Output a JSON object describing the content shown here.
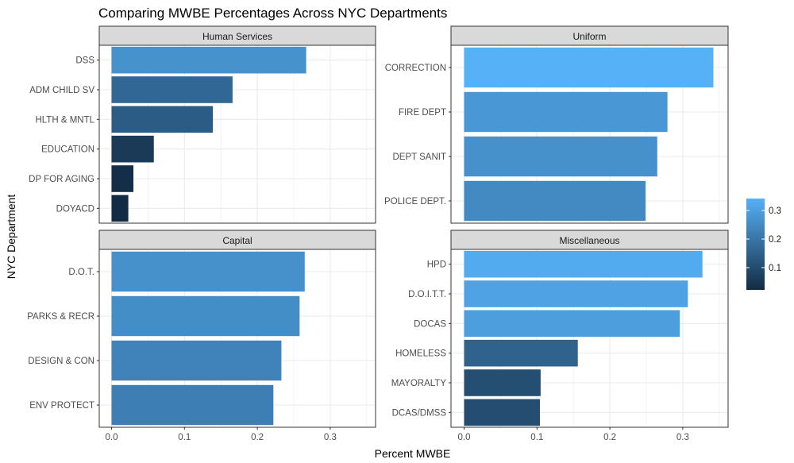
{
  "chart_data": {
    "type": "bar",
    "orientation": "horizontal",
    "title": "Comparing MWBE Percentages Across NYC Departments",
    "xlabel": "Percent MWBE",
    "ylabel": "NYC Department",
    "xlim": [
      0,
      0.35
    ],
    "x_ticks": [
      0.0,
      0.1,
      0.2,
      0.3
    ],
    "x_tick_labels": [
      "0.0",
      "0.1",
      "0.2",
      "0.3"
    ],
    "grid": true,
    "legend": {
      "type": "colorbar",
      "placement": "right",
      "ticks": [
        0.1,
        0.2,
        0.3
      ],
      "tick_labels": [
        "0.1",
        "0.2",
        "0.3"
      ],
      "range": [
        0.022,
        0.342
      ],
      "low_color": "#132b43",
      "high_color": "#56b1f7"
    },
    "facets": [
      {
        "name": "Human Services",
        "categories": [
          "DSS",
          "ADM CHILD SV",
          "HLTH & MNTL",
          "EDUCATION",
          "DP FOR AGING",
          "DOYACD"
        ],
        "values": [
          0.267,
          0.166,
          0.139,
          0.058,
          0.03,
          0.023
        ]
      },
      {
        "name": "Uniform",
        "categories": [
          "CORRECTION",
          "FIRE DEPT",
          "DEPT SANIT",
          "POLICE DEPT."
        ],
        "values": [
          0.342,
          0.279,
          0.265,
          0.249
        ]
      },
      {
        "name": "Capital",
        "categories": [
          "D.O.T.",
          "PARKS & RECR",
          "DESIGN & CON",
          "ENV PROTECT"
        ],
        "values": [
          0.265,
          0.258,
          0.233,
          0.222
        ]
      },
      {
        "name": "Miscellaneous",
        "categories": [
          "HPD",
          "D.O.I.T.T.",
          "DOCAS",
          "HOMELESS",
          "MAYORALTY",
          "DCAS/DMSS"
        ],
        "values": [
          0.327,
          0.307,
          0.296,
          0.156,
          0.105,
          0.104
        ]
      }
    ]
  },
  "colors": {
    "panel_border": "#333333",
    "strip_fill": "#d9d9d9",
    "grid": "#ebebeb",
    "background": "#ffffff"
  }
}
